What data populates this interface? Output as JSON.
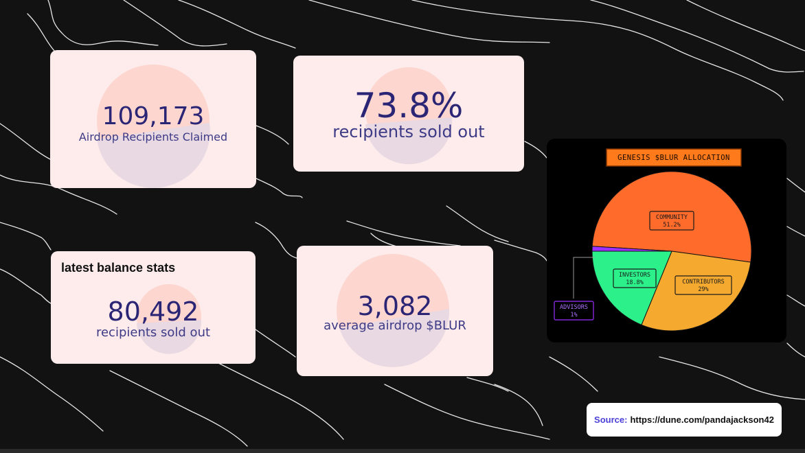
{
  "stats": {
    "claimed": {
      "value": "109,173",
      "label": "Airdrop Recipients Claimed"
    },
    "sold_pct": {
      "value": "73.8%",
      "label": "recipients sold out"
    },
    "balance": {
      "heading": "latest balance stats",
      "value": "80,492",
      "label": "recipients sold out"
    },
    "avg": {
      "value": "3,082",
      "label": "average airdrop $BLUR"
    }
  },
  "chart_data": {
    "type": "pie",
    "title": "GENESIS $BLUR ALLOCATION",
    "slices": [
      {
        "label": "COMMUNITY",
        "display": "51.2%",
        "value": 51.2,
        "color": "#ff6b2b"
      },
      {
        "label": "CONTRIBUTORS",
        "display": "29%",
        "value": 29,
        "color": "#f5a92f"
      },
      {
        "label": "INVESTORS",
        "display": "18.8%",
        "value": 18.8,
        "color": "#2cf08a"
      },
      {
        "label": "ADVISORS",
        "display": "1%",
        "value": 1,
        "color": "#9b30ff"
      }
    ],
    "colors": {
      "background": "#000000",
      "title_bg": "#ff7a1a"
    }
  },
  "source": {
    "label": "Source:",
    "url": "https://dune.com/pandajackson42"
  }
}
